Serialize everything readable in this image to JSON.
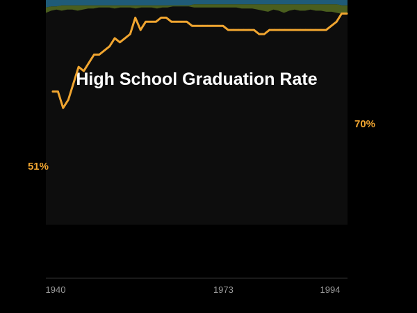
{
  "colors": {
    "background": "#000000",
    "panel": "#0d0d0d",
    "line": "#f0a530",
    "top_band": "#1f5b78",
    "middle_band": "#4a5e1e",
    "text": "#ffffff",
    "axis": "#333333",
    "tick_text": "#9a9a9a"
  },
  "chart_data": {
    "type": "line",
    "title": "High School Graduation Rate",
    "xlabel": "",
    "ylabel": "",
    "x_ticks": [
      1940,
      1973,
      1994
    ],
    "xlim": [
      1940,
      1997
    ],
    "ylim": [
      40,
      90
    ],
    "grid": false,
    "series": [
      {
        "x": [
          1940,
          1941,
          1942,
          1943,
          1944,
          1945,
          1946,
          1947,
          1948,
          1949,
          1950,
          1951,
          1952,
          1953,
          1954,
          1955,
          1956,
          1957,
          1958,
          1959,
          1960,
          1961,
          1962,
          1963,
          1964,
          1965,
          1966,
          1967,
          1968,
          1969,
          1970,
          1971,
          1972,
          1973,
          1974,
          1975,
          1976,
          1977,
          1978,
          1979,
          1980,
          1981,
          1982,
          1983,
          1984,
          1985,
          1986,
          1987,
          1988,
          1989,
          1990,
          1991,
          1992,
          1993,
          1994,
          1995,
          1996,
          1997
        ],
        "values": [
          51,
          51,
          47,
          49,
          53,
          57,
          56,
          58,
          60,
          60,
          61,
          62,
          64,
          63,
          64,
          65,
          69,
          66,
          68,
          68,
          68,
          69,
          69,
          68,
          68,
          68,
          68,
          67,
          67,
          67,
          67,
          67,
          67,
          67,
          66,
          66,
          66,
          66,
          66,
          66,
          65,
          65,
          66,
          66,
          66,
          66,
          66,
          66,
          66,
          66,
          66,
          66,
          66,
          66,
          67,
          68,
          70,
          70
        ],
        "label_start": "51%",
        "label_end": "70%"
      }
    ],
    "background_bands": {
      "top": [
        100,
        100,
        100,
        100,
        100,
        100,
        100,
        100,
        100,
        100,
        100,
        100,
        100,
        100,
        100,
        100,
        100,
        100,
        100,
        100,
        100,
        100,
        100,
        100,
        100,
        100,
        100,
        100,
        100,
        100,
        100,
        100,
        100,
        100,
        100,
        100,
        100,
        100,
        100,
        100,
        100,
        100,
        100,
        100,
        100,
        100,
        100,
        100,
        100,
        100,
        100,
        100,
        100,
        100,
        100,
        100,
        100,
        100
      ],
      "middle": [
        93,
        94,
        94,
        95,
        95,
        95,
        95,
        95,
        95,
        95,
        95,
        95,
        95,
        95,
        95,
        95,
        95,
        95,
        95,
        95,
        95,
        95,
        95,
        95,
        95,
        95,
        95,
        95,
        96,
        96,
        96,
        96,
        96,
        96,
        96,
        96,
        96,
        96,
        96,
        96,
        96,
        96,
        96,
        96,
        96,
        96,
        96,
        96,
        96,
        96,
        96,
        96,
        96,
        96,
        96,
        96,
        95,
        95
      ],
      "base": [
        88,
        90,
        91,
        90,
        91,
        91,
        90,
        91,
        92,
        92,
        93,
        93,
        93,
        92,
        93,
        93,
        93,
        92,
        93,
        93,
        93,
        92,
        93,
        93,
        94,
        94,
        94,
        94,
        93,
        93,
        93,
        93,
        93,
        93,
        93,
        93,
        93,
        92,
        92,
        92,
        91,
        90,
        89,
        91,
        90,
        88,
        90,
        91,
        90,
        90,
        91,
        90,
        90,
        89,
        89,
        88,
        87,
        87
      ]
    }
  }
}
